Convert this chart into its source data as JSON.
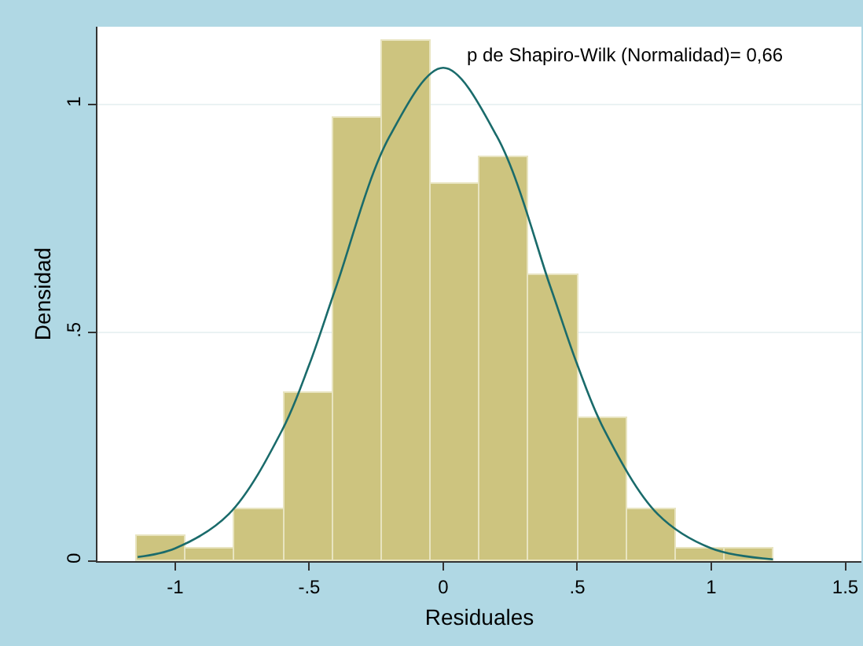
{
  "chart_data": {
    "type": "histogram",
    "xlabel": "Residuales",
    "ylabel": "Densidad",
    "annotations": [
      "p de Shapiro-Wilk (Normalidad)= 0,66"
    ],
    "bins": [
      -1.143,
      -0.96,
      -0.777,
      -0.595,
      -0.412,
      -0.229,
      -0.046,
      0.136,
      0.319,
      0.502,
      0.685,
      0.867,
      1.05,
      1.233
    ],
    "values": [
      0.055,
      0.028,
      0.114,
      0.369,
      0.969,
      1.139,
      0.826,
      0.883,
      0.626,
      0.314,
      0.114,
      0.028,
      0.028
    ],
    "color": "#cdc47f",
    "series": [
      {
        "type": "line",
        "color": "#1a6b6b",
        "x": [
          -1.14,
          -1,
          -0.8,
          -0.6,
          -0.5,
          -0.4,
          -0.2,
          0,
          0.2,
          0.4,
          0.5,
          0.6,
          0.8,
          1,
          1.23
        ],
        "values": [
          0.009,
          0.028,
          0.103,
          0.288,
          0.43,
          0.6,
          0.93,
          1.08,
          0.93,
          0.6,
          0.43,
          0.288,
          0.103,
          0.028,
          0.004
        ]
      }
    ],
    "xlim": [
      -1.29,
      1.56
    ],
    "ylim": [
      0,
      1.17
    ],
    "xticks": [
      -1,
      {
        "value": -0.5,
        "label": "-.5"
      },
      0,
      {
        "value": 0.5,
        "label": ".5"
      },
      1,
      1.5
    ],
    "yticks": [
      0,
      {
        "value": 0.5,
        "label": ".5"
      },
      1
    ],
    "grid": "y",
    "legend": false
  }
}
